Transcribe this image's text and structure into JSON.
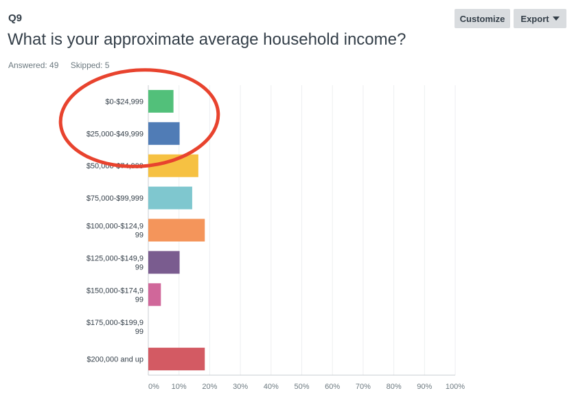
{
  "question": {
    "number": "Q9",
    "title": "What is your approximate average household income?",
    "answered": "Answered: 49",
    "skipped": "Skipped: 5"
  },
  "toolbar": {
    "customize_label": "Customize",
    "export_label": "Export",
    "export_icon": "caret-down-icon"
  },
  "annotation": {
    "type": "hand-drawn ellipse",
    "color": "#e8432e",
    "highlights": [
      "$0-$24,999",
      "$25,000-$49,999"
    ]
  },
  "chart_data": {
    "type": "bar",
    "orientation": "horizontal",
    "categories": [
      [
        "$0-$24,999"
      ],
      [
        "$25,000-$49,999"
      ],
      [
        "$50,000-$74,999"
      ],
      [
        "$75,000-$99,999"
      ],
      [
        "$100,000-$124,9",
        "99"
      ],
      [
        "$125,000-$149,9",
        "99"
      ],
      [
        "$150,000-$174,9",
        "99"
      ],
      [
        "$175,000-$199,9",
        "99"
      ],
      [
        "$200,000 and up"
      ]
    ],
    "values": [
      8.2,
      10.2,
      16.3,
      14.3,
      18.4,
      10.2,
      4.1,
      0,
      18.4
    ],
    "colors": [
      "#52c07a",
      "#507cb6",
      "#f6c142",
      "#7fc7cf",
      "#f4955b",
      "#7a5c8f",
      "#d0679a",
      "#8bc48a",
      "#d35a63"
    ],
    "x_ticks": [
      "0%",
      "10%",
      "20%",
      "30%",
      "40%",
      "50%",
      "60%",
      "70%",
      "80%",
      "90%",
      "100%"
    ],
    "xlim": [
      0,
      100
    ],
    "grid": true,
    "legend": "none"
  }
}
